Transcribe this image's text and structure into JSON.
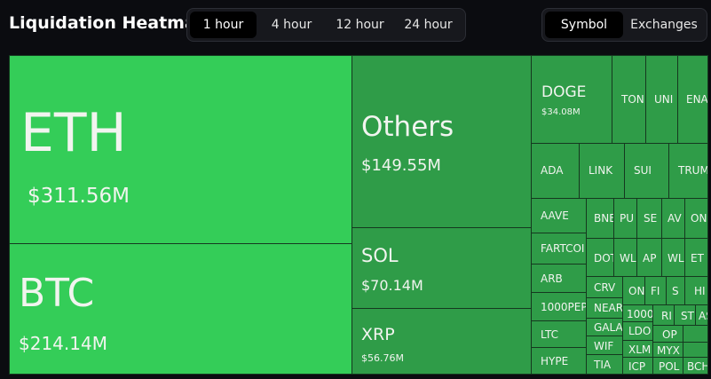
{
  "header": {
    "title": "Liquidation Heatmap",
    "time_tabs": [
      "1 hour",
      "4 hour",
      "12 hour",
      "24 hour"
    ],
    "view_tabs": [
      "Symbol",
      "Exchanges"
    ]
  },
  "colors": {
    "large_tile": "#34cd58",
    "medium_tile": "#2f9c48",
    "small_tile": "#2f9c48"
  },
  "tiles": {
    "eth": {
      "symbol": "ETH",
      "value": "$311.56M"
    },
    "btc": {
      "symbol": "BTC",
      "value": "$214.14M"
    },
    "others": {
      "symbol": "Others",
      "value": "$149.55M"
    },
    "sol": {
      "symbol": "SOL",
      "value": "$70.14M"
    },
    "xrp": {
      "symbol": "XRP",
      "value": "$56.76M"
    },
    "doge": {
      "symbol": "DOGE",
      "value": "$34.08M"
    },
    "small": [
      "TON",
      "UNI",
      "ENA",
      "ADA",
      "LINK",
      "SUI",
      "TRUM",
      "AAVE",
      "BNE",
      "PU",
      "SE",
      "AV",
      "ON",
      "FARTCOI",
      "DOT",
      "WL",
      "AP",
      "WL",
      "ET",
      "ARB",
      "CRV",
      "ON",
      "FI",
      "S",
      "HI",
      "1000PEP",
      "NEAR",
      "1000",
      "RI",
      "ST",
      "AS",
      "LTC",
      "GALA",
      "LDO",
      "OP",
      "WIF",
      "XLM",
      "MYX",
      "HYPE",
      "TIA",
      "ICP",
      "POL",
      "BCH"
    ]
  }
}
